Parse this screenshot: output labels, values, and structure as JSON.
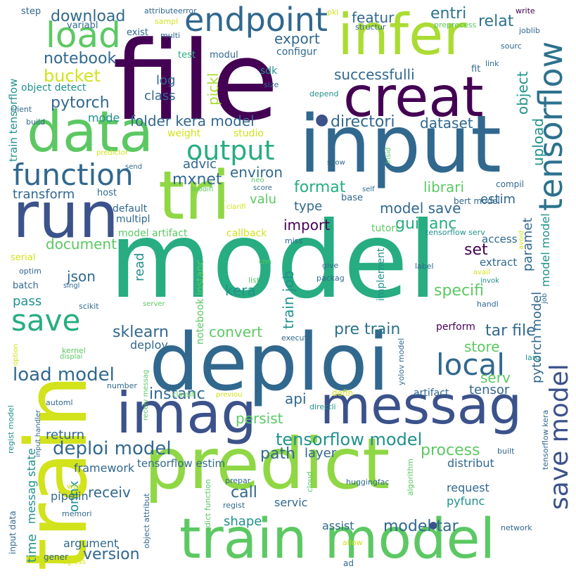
{
  "palette": {
    "c1": "#440154",
    "c2": "#3b528b",
    "c3": "#31688e",
    "c4": "#2c728e",
    "c5": "#21918c",
    "c6": "#27ad81",
    "c7": "#5cc863",
    "c8": "#8fd744",
    "c9": "#aadc32",
    "c10": "#d2e21b",
    "c11": "#fde725"
  },
  "words": [
    {
      "text": "model",
      "c": "c6"
    },
    {
      "text": "file",
      "c": "c1"
    },
    {
      "text": "input",
      "c": "c3"
    },
    {
      "text": "deploi",
      "c": "c3"
    },
    {
      "text": "predict",
      "c": "c8"
    },
    {
      "text": "train",
      "c": "c10"
    },
    {
      "text": "train model",
      "c": "c7"
    },
    {
      "text": "infer",
      "c": "c9"
    },
    {
      "text": "creat",
      "c": "c1"
    },
    {
      "text": "data",
      "c": "c7"
    },
    {
      "text": "run",
      "c": "c2"
    },
    {
      "text": "tri",
      "c": "c8"
    },
    {
      "text": "imag",
      "c": "c2"
    },
    {
      "text": "messag",
      "c": "c2"
    },
    {
      "text": "endpoint",
      "c": "c3"
    },
    {
      "text": "load",
      "c": "c7"
    },
    {
      "text": "function",
      "c": "c3"
    },
    {
      "text": "output",
      "c": "c6"
    },
    {
      "text": "tensorflow",
      "c": "c4"
    },
    {
      "text": "save model",
      "c": "c2"
    },
    {
      "text": "local",
      "c": "c3"
    },
    {
      "text": "save",
      "c": "c6"
    },
    {
      "text": "load model",
      "c": "c3"
    },
    {
      "text": "deploi model",
      "c": "c3"
    },
    {
      "text": "tensorflow model",
      "c": "c5"
    },
    {
      "text": "pre train",
      "c": "c4"
    },
    {
      "text": "tar file",
      "c": "c3"
    },
    {
      "text": "model save",
      "c": "c3"
    },
    {
      "text": "successfulli",
      "c": "c3"
    },
    {
      "text": "directori",
      "c": "c3"
    },
    {
      "text": "folder kera model",
      "c": "c3"
    },
    {
      "text": "dataset",
      "c": "c3"
    },
    {
      "text": "pytorch",
      "c": "c3"
    },
    {
      "text": "notebook",
      "c": "c3"
    },
    {
      "text": "bucket",
      "c": "c10"
    },
    {
      "text": "export",
      "c": "c3"
    },
    {
      "text": "download",
      "c": "c3"
    },
    {
      "text": "featur",
      "c": "c3"
    },
    {
      "text": "entri",
      "c": "c4"
    },
    {
      "text": "relat",
      "c": "c4"
    },
    {
      "text": "object",
      "c": "c5"
    },
    {
      "text": "upload",
      "c": "c5"
    },
    {
      "text": "mxnet",
      "c": "c3"
    },
    {
      "text": "environ",
      "c": "c3"
    },
    {
      "text": "advic",
      "c": "c3"
    },
    {
      "text": "format",
      "c": "c6"
    },
    {
      "text": "librari",
      "c": "c7"
    },
    {
      "text": "estim",
      "c": "c3"
    },
    {
      "text": "import",
      "c": "c1"
    },
    {
      "text": "guidanc",
      "c": "c6"
    },
    {
      "text": "set",
      "c": "c1"
    },
    {
      "text": "paramet",
      "c": "c3"
    },
    {
      "text": "model model",
      "c": "c5"
    },
    {
      "text": "pytorch model",
      "c": "c3"
    },
    {
      "text": "specifi",
      "c": "c7"
    },
    {
      "text": "train job",
      "c": "c5"
    },
    {
      "text": "kera",
      "c": "c5"
    },
    {
      "text": "convert",
      "c": "c7"
    },
    {
      "text": "store",
      "c": "c7"
    },
    {
      "text": "serv",
      "c": "c7"
    },
    {
      "text": "tensor",
      "c": "c3"
    },
    {
      "text": "instanc",
      "c": "c3"
    },
    {
      "text": "api",
      "c": "c3"
    },
    {
      "text": "persist",
      "c": "c7"
    },
    {
      "text": "process",
      "c": "c7"
    },
    {
      "text": "path",
      "c": "c3"
    },
    {
      "text": "layer",
      "c": "c3"
    },
    {
      "text": "return",
      "c": "c3"
    },
    {
      "text": "call",
      "c": "c3"
    },
    {
      "text": "receiv",
      "c": "c3"
    },
    {
      "text": "shape",
      "c": "c5"
    },
    {
      "text": "version",
      "c": "c3"
    },
    {
      "text": "model tar",
      "c": "c3"
    },
    {
      "text": "json",
      "c": "c3"
    },
    {
      "text": "document",
      "c": "c7"
    },
    {
      "text": "transform",
      "c": "c3"
    },
    {
      "text": "valu",
      "c": "c7"
    },
    {
      "text": "type",
      "c": "c3"
    },
    {
      "text": "log",
      "c": "c3"
    },
    {
      "text": "class",
      "c": "c3"
    },
    {
      "text": "mode",
      "c": "c5"
    },
    {
      "text": "pickl",
      "c": "c9"
    },
    {
      "text": "sklearn",
      "c": "c3"
    },
    {
      "text": "deploy",
      "c": "c3"
    },
    {
      "text": "pass",
      "c": "c5"
    },
    {
      "text": "read",
      "c": "c5"
    },
    {
      "text": "framework",
      "c": "c3"
    },
    {
      "text": "onnx",
      "c": "c5"
    },
    {
      "text": "time",
      "c": "c5"
    },
    {
      "text": "messag state",
      "c": "c5"
    },
    {
      "text": "request",
      "c": "c3"
    },
    {
      "text": "pyfunc",
      "c": "c5"
    },
    {
      "text": "distribut",
      "c": "c3"
    },
    {
      "text": "tensorflow estim",
      "c": "c3"
    },
    {
      "text": "pipelin",
      "c": "c3"
    },
    {
      "text": "servic",
      "c": "c3"
    },
    {
      "text": "assist",
      "c": "c3"
    },
    {
      "text": "argument",
      "c": "c3"
    },
    {
      "text": "artifact",
      "c": "c3"
    },
    {
      "text": "implement",
      "c": "c5"
    },
    {
      "text": "extract",
      "c": "c3"
    },
    {
      "text": "access",
      "c": "c3"
    },
    {
      "text": "tutori",
      "c": "c7"
    },
    {
      "text": "perform",
      "c": "c1"
    },
    {
      "text": "notebook instanc",
      "c": "c7"
    },
    {
      "text": "configur",
      "c": "c3"
    },
    {
      "text": "sdk",
      "c": "c5"
    },
    {
      "text": "modul",
      "c": "c3"
    },
    {
      "text": "test",
      "c": "c6"
    },
    {
      "text": "exist",
      "c": "c3"
    },
    {
      "text": "step",
      "c": "c3"
    },
    {
      "text": "variabl",
      "c": "c3"
    },
    {
      "text": "object detect",
      "c": "c5"
    },
    {
      "text": "train tensorflow",
      "c": "c5"
    },
    {
      "text": "client",
      "c": "c3"
    },
    {
      "text": "build",
      "c": "c3"
    },
    {
      "text": "weight",
      "c": "c10"
    },
    {
      "text": "studio",
      "c": "c10"
    },
    {
      "text": "default",
      "c": "c3"
    },
    {
      "text": "multipl",
      "c": "c3"
    },
    {
      "text": "model artifact",
      "c": "c7"
    },
    {
      "text": "callback",
      "c": "c10"
    },
    {
      "text": "host",
      "c": "c3"
    },
    {
      "text": "serial",
      "c": "c10"
    },
    {
      "text": "optim",
      "c": "c3"
    },
    {
      "text": "batch",
      "c": "c3"
    },
    {
      "text": "singl",
      "c": "c3"
    },
    {
      "text": "scikit",
      "c": "c3"
    },
    {
      "text": "write",
      "c": "c1"
    },
    {
      "text": "joblib",
      "c": "c3"
    },
    {
      "text": "sourc",
      "c": "c3"
    },
    {
      "text": "preprocess",
      "c": "c7"
    },
    {
      "text": "structur",
      "c": "c3"
    },
    {
      "text": "pkl",
      "c": "c10"
    },
    {
      "text": "attributeerror",
      "c": "c3"
    },
    {
      "text": "sampl",
      "c": "c10"
    },
    {
      "text": "multi",
      "c": "c3"
    },
    {
      "text": "link",
      "c": "c3"
    },
    {
      "text": "fit",
      "c": "c3"
    },
    {
      "text": "size",
      "c": "c3"
    },
    {
      "text": "depend",
      "c": "c5"
    },
    {
      "text": "insid",
      "c": "c7"
    },
    {
      "text": "show",
      "c": "c3"
    },
    {
      "text": "self",
      "c": "c3"
    },
    {
      "text": "neo",
      "c": "c7"
    },
    {
      "text": "score",
      "c": "c3"
    },
    {
      "text": "modifi",
      "c": "c7"
    },
    {
      "text": "clarifi",
      "c": "c10"
    },
    {
      "text": "base",
      "c": "c3"
    },
    {
      "text": "bert model",
      "c": "c3"
    },
    {
      "text": "compil",
      "c": "c3"
    },
    {
      "text": "tensorflow serv",
      "c": "c5"
    },
    {
      "text": "avoid",
      "c": "c10"
    },
    {
      "text": "avail",
      "c": "c10"
    },
    {
      "text": "invok",
      "c": "c5"
    },
    {
      "text": "job",
      "c": "c3"
    },
    {
      "text": "handl",
      "c": "c3"
    },
    {
      "text": "label",
      "c": "c3"
    },
    {
      "text": "give",
      "c": "c3"
    },
    {
      "text": "packag",
      "c": "c3"
    },
    {
      "text": "cnn",
      "c": "c7"
    },
    {
      "text": "list",
      "c": "c7"
    },
    {
      "text": "miss",
      "c": "c3"
    },
    {
      "text": "predictor",
      "c": "c10"
    },
    {
      "text": "send",
      "c": "c3"
    },
    {
      "text": "server",
      "c": "c7"
    },
    {
      "text": "kernel",
      "c": "c7"
    },
    {
      "text": "displai",
      "c": "c7"
    },
    {
      "text": "option",
      "c": "c10"
    },
    {
      "text": "number",
      "c": "c3"
    },
    {
      "text": "classifi",
      "c": "c7"
    },
    {
      "text": "previou",
      "c": "c10"
    },
    {
      "text": "receiv messag",
      "c": "c7"
    },
    {
      "text": "automl",
      "c": "c3"
    },
    {
      "text": "regist model",
      "c": "c5"
    },
    {
      "text": "input handler",
      "c": "c3"
    },
    {
      "text": "execut",
      "c": "c3"
    },
    {
      "text": "yolov model",
      "c": "c3"
    },
    {
      "text": "larg",
      "c": "c5"
    },
    {
      "text": "defin",
      "c": "c10"
    },
    {
      "text": "directli",
      "c": "c5"
    },
    {
      "text": "tensorflow kera",
      "c": "c3"
    },
    {
      "text": "built",
      "c": "c3"
    },
    {
      "text": "algorithm",
      "c": "c7"
    },
    {
      "text": "huggingfac",
      "c": "c3"
    },
    {
      "text": "cloud",
      "c": "c7"
    },
    {
      "text": "prepar",
      "c": "c3"
    },
    {
      "text": "regist",
      "c": "c3"
    },
    {
      "text": "input data",
      "c": "c3"
    },
    {
      "text": "warn",
      "c": "c10"
    },
    {
      "text": "memori",
      "c": "c3"
    },
    {
      "text": "object attribut",
      "c": "c3"
    },
    {
      "text": "predict function",
      "c": "c7"
    },
    {
      "text": "network",
      "c": "c3"
    },
    {
      "text": "allow",
      "c": "c10"
    },
    {
      "text": "gener",
      "c": "c3"
    },
    {
      "text": "regress",
      "c": "c10"
    },
    {
      "text": "ad",
      "c": "c3"
    }
  ]
}
